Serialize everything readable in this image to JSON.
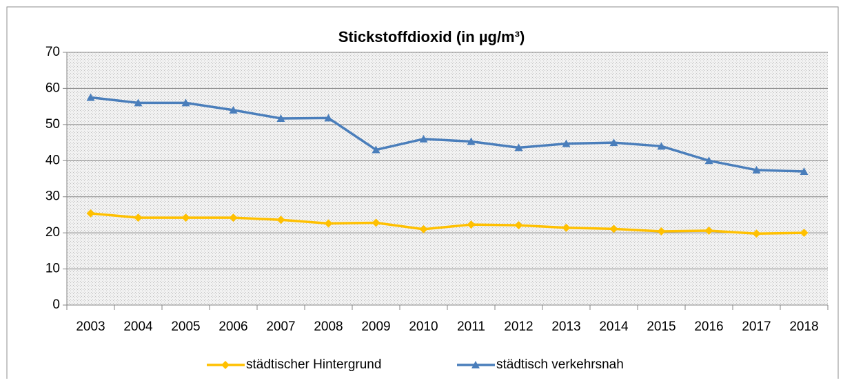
{
  "chart_data": {
    "type": "line",
    "title": "Stickstoffdioxid (in µg/m³)",
    "categories": [
      "2003",
      "2004",
      "2005",
      "2006",
      "2007",
      "2008",
      "2009",
      "2010",
      "2011",
      "2012",
      "2013",
      "2014",
      "2015",
      "2016",
      "2017",
      "2018"
    ],
    "series": [
      {
        "name": "städtischer Hintergrund",
        "color": "#ffc000",
        "marker": "diamond",
        "values": [
          25.4,
          24.2,
          24.2,
          24.2,
          23.6,
          22.6,
          22.8,
          21,
          22.3,
          22.1,
          21.4,
          21.1,
          20.4,
          20.6,
          19.8,
          20
        ]
      },
      {
        "name": "städtisch verkehrsnah",
        "color": "#4a7ebb",
        "marker": "triangle",
        "values": [
          57.5,
          56,
          56,
          54,
          51.7,
          51.8,
          43,
          46,
          45.3,
          43.6,
          44.7,
          45,
          44,
          40,
          37.4,
          37
        ]
      }
    ],
    "ylim": [
      0,
      70
    ],
    "yticks": [
      0,
      10,
      20,
      30,
      40,
      50,
      60,
      70
    ],
    "grid": true,
    "legend": "bottom"
  }
}
